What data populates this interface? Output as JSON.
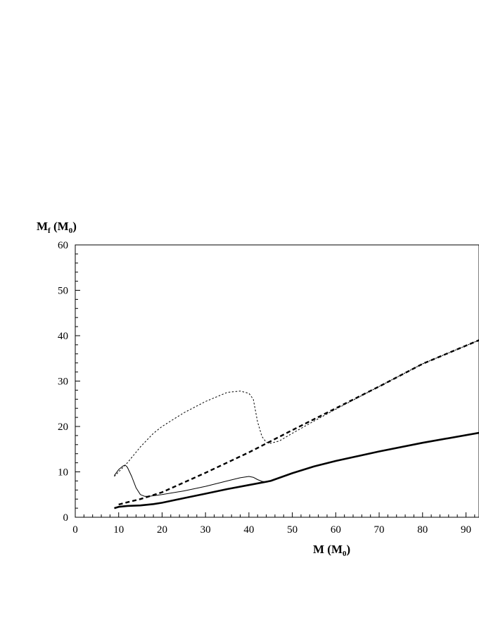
{
  "chart_data": {
    "type": "line",
    "title": "",
    "xlabel": "M (M",
    "xlabel_sub": "0",
    "xlabel_end": ")",
    "ylabel": "M",
    "ylabel_sub": "f",
    "ylabel_mid": " (M",
    "ylabel_sub2": "0",
    "ylabel_end": ")",
    "xlim": [
      0,
      93
    ],
    "ylim": [
      0,
      60
    ],
    "xticks": [
      0,
      10,
      20,
      30,
      40,
      50,
      60,
      70,
      80,
      90
    ],
    "yticks": [
      0,
      10,
      20,
      30,
      40,
      50,
      60
    ],
    "grid": false,
    "legend": "none",
    "series": [
      {
        "style": "dotted",
        "x": [
          9,
          10,
          12,
          15,
          18,
          20,
          25,
          30,
          35,
          38,
          40,
          41,
          42,
          43,
          44,
          45,
          47,
          50,
          55,
          60,
          70,
          80,
          93
        ],
        "y": [
          9.0,
          10.0,
          12.0,
          15.5,
          18.5,
          20.0,
          23.0,
          25.5,
          27.5,
          27.8,
          27.3,
          26.0,
          21.0,
          17.8,
          16.5,
          16.3,
          16.8,
          18.5,
          21.2,
          23.8,
          28.8,
          33.8,
          39.0
        ],
        "color": "#000000"
      },
      {
        "style": "dashed",
        "x": [
          10,
          12,
          15,
          20,
          30,
          40,
          50,
          60,
          70,
          80,
          93
        ],
        "y": [
          2.8,
          3.3,
          4.0,
          5.5,
          9.8,
          14.3,
          19.2,
          24.0,
          28.8,
          33.8,
          39.0
        ],
        "color": "#000000"
      },
      {
        "style": "thin-solid",
        "x": [
          9,
          10,
          11,
          11.5,
          12,
          13,
          14,
          15,
          16,
          17,
          20,
          25,
          30,
          35,
          38,
          40,
          41,
          42,
          43,
          44
        ],
        "y": [
          9.2,
          10.5,
          11.3,
          11.5,
          11.0,
          9.0,
          6.5,
          5.0,
          4.6,
          4.6,
          5.0,
          5.8,
          6.8,
          8.0,
          8.7,
          9.0,
          8.8,
          8.3,
          7.9,
          7.8
        ],
        "color": "#000000"
      },
      {
        "style": "thick-solid",
        "x": [
          9,
          10,
          12,
          15,
          18,
          20,
          25,
          30,
          35,
          40,
          45,
          50,
          55,
          60,
          70,
          80,
          93
        ],
        "y": [
          2.0,
          2.3,
          2.5,
          2.6,
          2.9,
          3.2,
          4.2,
          5.2,
          6.2,
          7.1,
          8.0,
          9.7,
          11.2,
          12.4,
          14.5,
          16.4,
          18.6
        ],
        "color": "#000000"
      }
    ]
  }
}
